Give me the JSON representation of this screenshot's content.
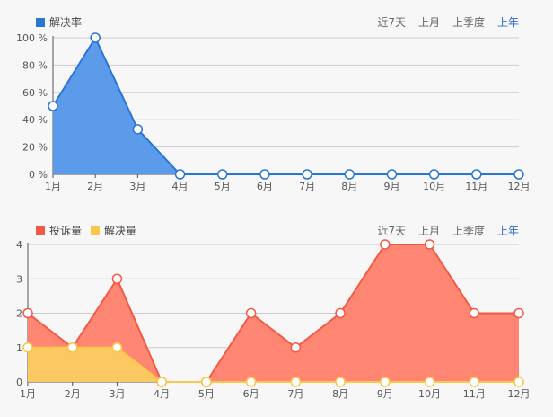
{
  "range_tabs": [
    {
      "label": "近7天",
      "active": false
    },
    {
      "label": "上月",
      "active": false
    },
    {
      "label": "上季度",
      "active": false
    },
    {
      "label": "上年",
      "active": true
    }
  ],
  "colors": {
    "blue": "#2a76d6",
    "blue_fill": "#5b9bea",
    "red": "#f25a45",
    "red_fill": "#ff8673",
    "yellow": "#f7c84a",
    "yellow_fill": "#fcc862",
    "grid": "#cccccc",
    "axis": "#555555",
    "active_tab": "#2a6fc9"
  },
  "chart_data": [
    {
      "type": "area",
      "categories": [
        "1月",
        "2月",
        "3月",
        "4月",
        "5月",
        "6月",
        "7月",
        "8月",
        "9月",
        "10月",
        "11月",
        "12月"
      ],
      "series": [
        {
          "name": "解决率",
          "values": [
            50,
            100,
            33,
            0,
            0,
            0,
            0,
            0,
            0,
            0,
            0,
            0
          ]
        }
      ],
      "ylim": [
        0,
        100
      ],
      "yticks": [
        0,
        20,
        40,
        60,
        80,
        100
      ],
      "ytick_labels": [
        "0 %",
        "20 %",
        "40 %",
        "60 %",
        "80 %",
        "100 %"
      ],
      "grid": true,
      "legend": "top-left"
    },
    {
      "type": "area",
      "categories": [
        "1月",
        "2月",
        "3月",
        "4月",
        "5月",
        "6月",
        "7月",
        "8月",
        "9月",
        "10月",
        "11月",
        "12月"
      ],
      "series": [
        {
          "name": "投诉量",
          "values": [
            2,
            1,
            3,
            0,
            0,
            2,
            1,
            2,
            4,
            4,
            2,
            2
          ]
        },
        {
          "name": "解决量",
          "values": [
            1,
            1,
            1,
            0,
            0,
            0,
            0,
            0,
            0,
            0,
            0,
            0
          ]
        }
      ],
      "ylim": [
        0,
        4
      ],
      "yticks": [
        0,
        1,
        2,
        3,
        4
      ],
      "ytick_labels": [
        "0",
        "1",
        "2",
        "3",
        "4"
      ],
      "grid": true,
      "legend": "top-left"
    }
  ]
}
